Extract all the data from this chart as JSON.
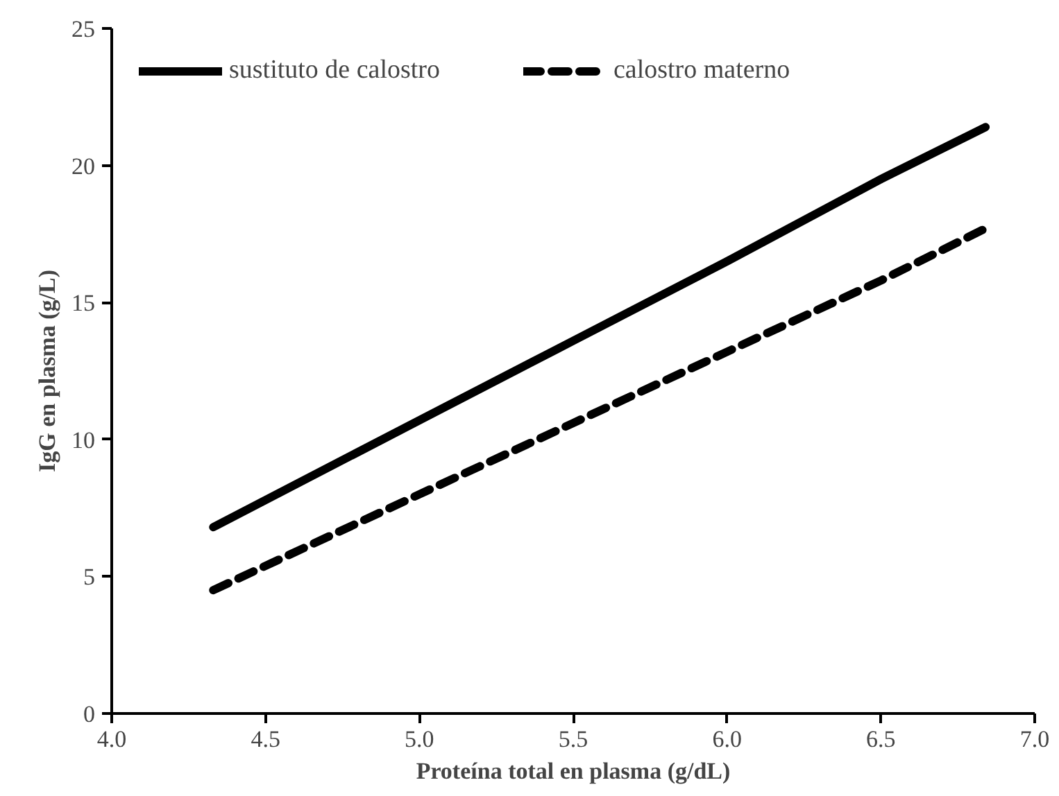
{
  "chart_data": {
    "type": "line",
    "xlabel": "Proteína total en plasma (g/dL)",
    "ylabel": "IgG en plasma (g/L)",
    "x": [
      4.33,
      5.0,
      5.5,
      6.0,
      6.5,
      6.84
    ],
    "series": [
      {
        "name": "sustituto de calostro",
        "color": "#000000",
        "line_style": "solid",
        "values": [
          6.8,
          10.7,
          13.6,
          16.5,
          19.5,
          21.4
        ]
      },
      {
        "name": "calostro materno",
        "color": "#000000",
        "line_style": "dashed",
        "values": [
          4.5,
          8.0,
          10.6,
          13.2,
          15.8,
          17.7
        ]
      }
    ],
    "xlim": [
      4.0,
      7.0
    ],
    "ylim": [
      0,
      25
    ],
    "xticks": [
      {
        "value": 4.0,
        "label": "4.0"
      },
      {
        "value": 4.5,
        "label": "4.5"
      },
      {
        "value": 5.0,
        "label": "5.0"
      },
      {
        "value": 5.5,
        "label": "5.5"
      },
      {
        "value": 6.0,
        "label": "6.0"
      },
      {
        "value": 6.5,
        "label": "6.5"
      },
      {
        "value": 7.0,
        "label": "7.0"
      }
    ],
    "yticks": [
      0,
      5,
      10,
      15,
      20,
      25
    ],
    "grid": false,
    "legend": "top left",
    "marker": "none"
  }
}
